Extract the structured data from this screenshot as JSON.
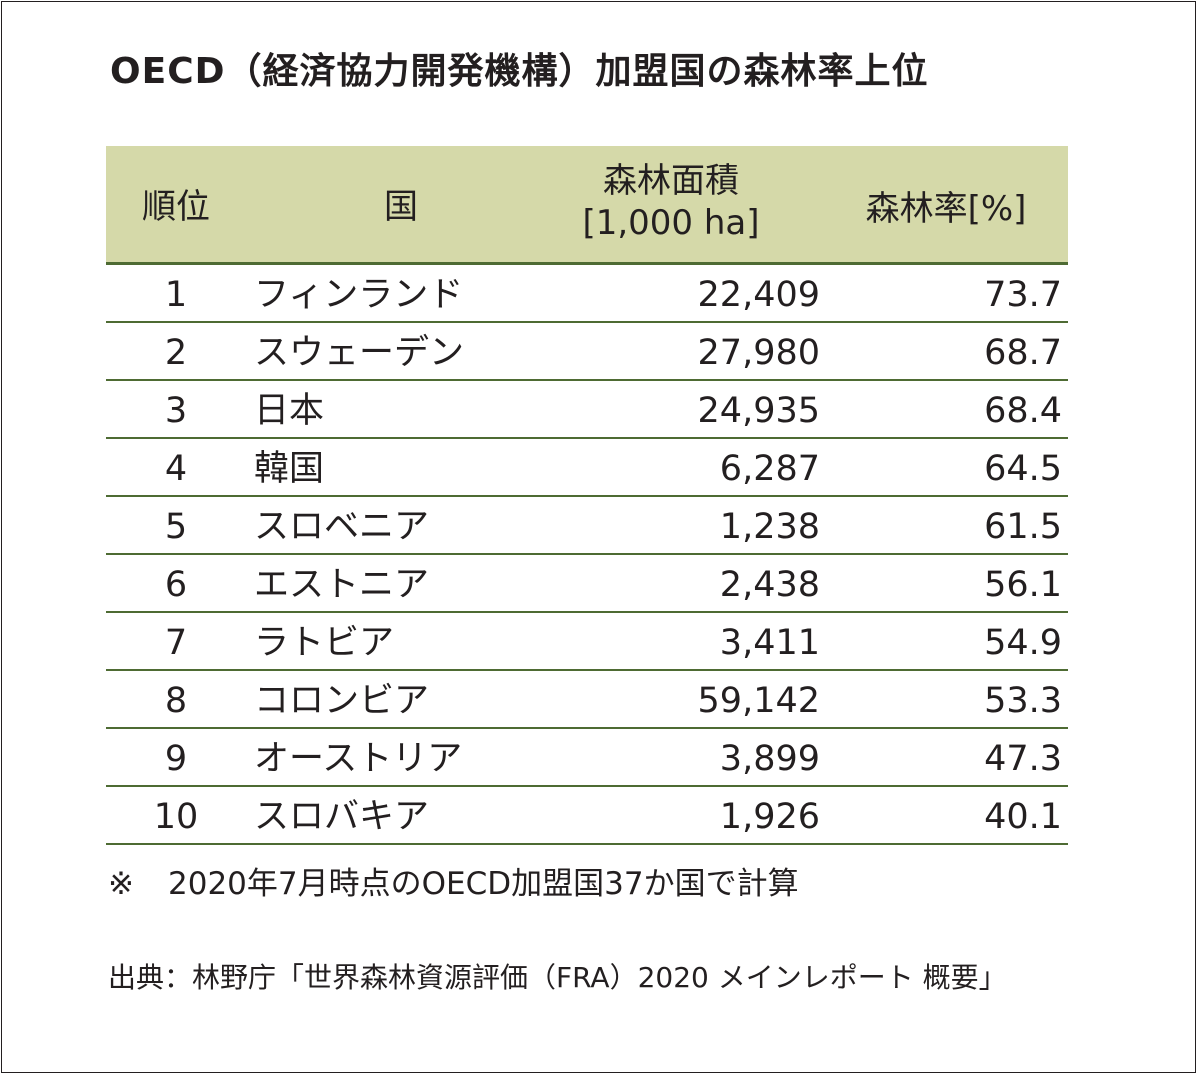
{
  "title": "OECD（経済協力開発機構）加盟国の森林率上位",
  "table": {
    "headers": {
      "rank": "順位",
      "country": "国",
      "area_line1": "森林面積",
      "area_line2": "[1,000 ha]",
      "rate": "森林率[%]"
    },
    "rows": [
      {
        "rank": "1",
        "country": "フィンランド",
        "area": "22,409",
        "rate": "73.7"
      },
      {
        "rank": "2",
        "country": "スウェーデン",
        "area": "27,980",
        "rate": "68.7"
      },
      {
        "rank": "3",
        "country": "日本",
        "area": "24,935",
        "rate": "68.4"
      },
      {
        "rank": "4",
        "country": "韓国",
        "area": "6,287",
        "rate": "64.5"
      },
      {
        "rank": "5",
        "country": "スロベニア",
        "area": "1,238",
        "rate": "61.5"
      },
      {
        "rank": "6",
        "country": "エストニア",
        "area": "2,438",
        "rate": "56.1"
      },
      {
        "rank": "7",
        "country": "ラトビア",
        "area": "3,411",
        "rate": "54.9"
      },
      {
        "rank": "8",
        "country": "コロンビア",
        "area": "59,142",
        "rate": "53.3"
      },
      {
        "rank": "9",
        "country": "オーストリア",
        "area": "3,899",
        "rate": "47.3"
      },
      {
        "rank": "10",
        "country": "スロバキア",
        "area": "1,926",
        "rate": "40.1"
      }
    ]
  },
  "note": {
    "mark": "※",
    "text": "2020年7月時点のOECD加盟国37か国で計算"
  },
  "source": "出典：林野庁「世界森林資源評価（FRA）2020 メインレポート 概要」",
  "colors": {
    "header_bg": "#d5d9a9",
    "rule": "#4e6b33",
    "text": "#231f20"
  }
}
